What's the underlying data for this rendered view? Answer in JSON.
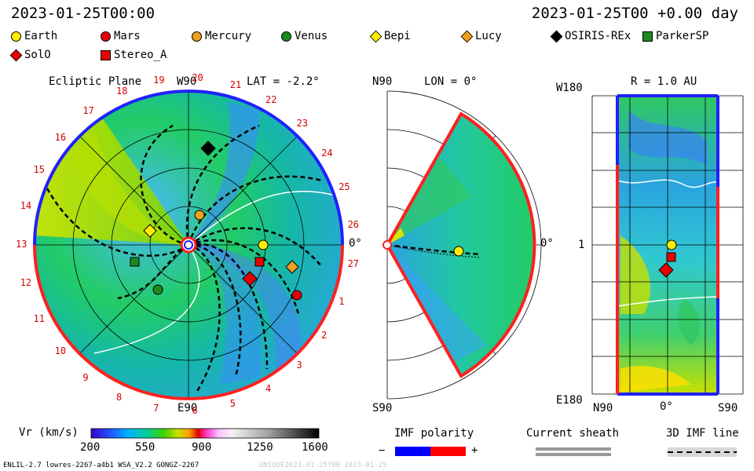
{
  "header": {
    "left_time": "2023-01-25T00:00",
    "right_time": "2023-01-25T00 +0.00 day"
  },
  "legend": [
    {
      "name": "Earth",
      "marker": "circle",
      "color": "#ffee00"
    },
    {
      "name": "Mars",
      "marker": "circle",
      "color": "#e60000"
    },
    {
      "name": "Mercury",
      "marker": "circle",
      "color": "#f0a020"
    },
    {
      "name": "Venus",
      "marker": "circle",
      "color": "#1e8a1e"
    },
    {
      "name": "Bepi",
      "marker": "diamond",
      "color": "#ffee00"
    },
    {
      "name": "Lucy",
      "marker": "diamond",
      "color": "#f0a020"
    },
    {
      "name": "OSIRIS-REx",
      "marker": "diamond",
      "color": "#000000"
    },
    {
      "name": "ParkerSP",
      "marker": "square",
      "color": "#1e8a1e"
    },
    {
      "name": "SolO",
      "marker": "diamond",
      "color": "#e60000"
    },
    {
      "name": "Stereo_A",
      "marker": "square",
      "color": "#e60000"
    }
  ],
  "panels": {
    "ecliptic": {
      "title": "Ecliptic Plane",
      "lat": "LAT = -2.2°",
      "top_label": "W90",
      "bottom_label": "E90",
      "right_label": "0°",
      "carrington_labels": [
        "19",
        "20",
        "21",
        "22",
        "23",
        "24",
        "25",
        "26",
        "27",
        "1",
        "2",
        "3",
        "4",
        "5",
        "6",
        "7",
        "8",
        "9",
        "10",
        "11",
        "12",
        "13",
        "14",
        "15",
        "16",
        "17",
        "18"
      ]
    },
    "meridional": {
      "lon": "LON = 0°",
      "top_label": "N90",
      "bottom_label": "S90",
      "right_label": "0°"
    },
    "sphere": {
      "title": "R = 1.0 AU",
      "top_label": "W180",
      "bottom_label": "E180",
      "mid_label": "1",
      "x_labels": [
        "N90",
        "0°",
        "S90"
      ]
    }
  },
  "colorbar": {
    "label": "Vr (km/s)",
    "ticks": [
      "200",
      "550",
      "900",
      "1250",
      "1600"
    ]
  },
  "imf": {
    "label": "IMF polarity",
    "minus": "−",
    "plus": "+",
    "neg_color": "#0000ff",
    "pos_color": "#ff0000"
  },
  "sheath": {
    "label": "Current sheath"
  },
  "imf3d": {
    "label": "3D IMF line"
  },
  "footer": {
    "left": "ENLIL-2.7 lowres-2267-a4b1 WSA_V2.2 GONGZ-2267",
    "right": "UNIQUE2023-01-25T00 2023-01-25"
  }
}
